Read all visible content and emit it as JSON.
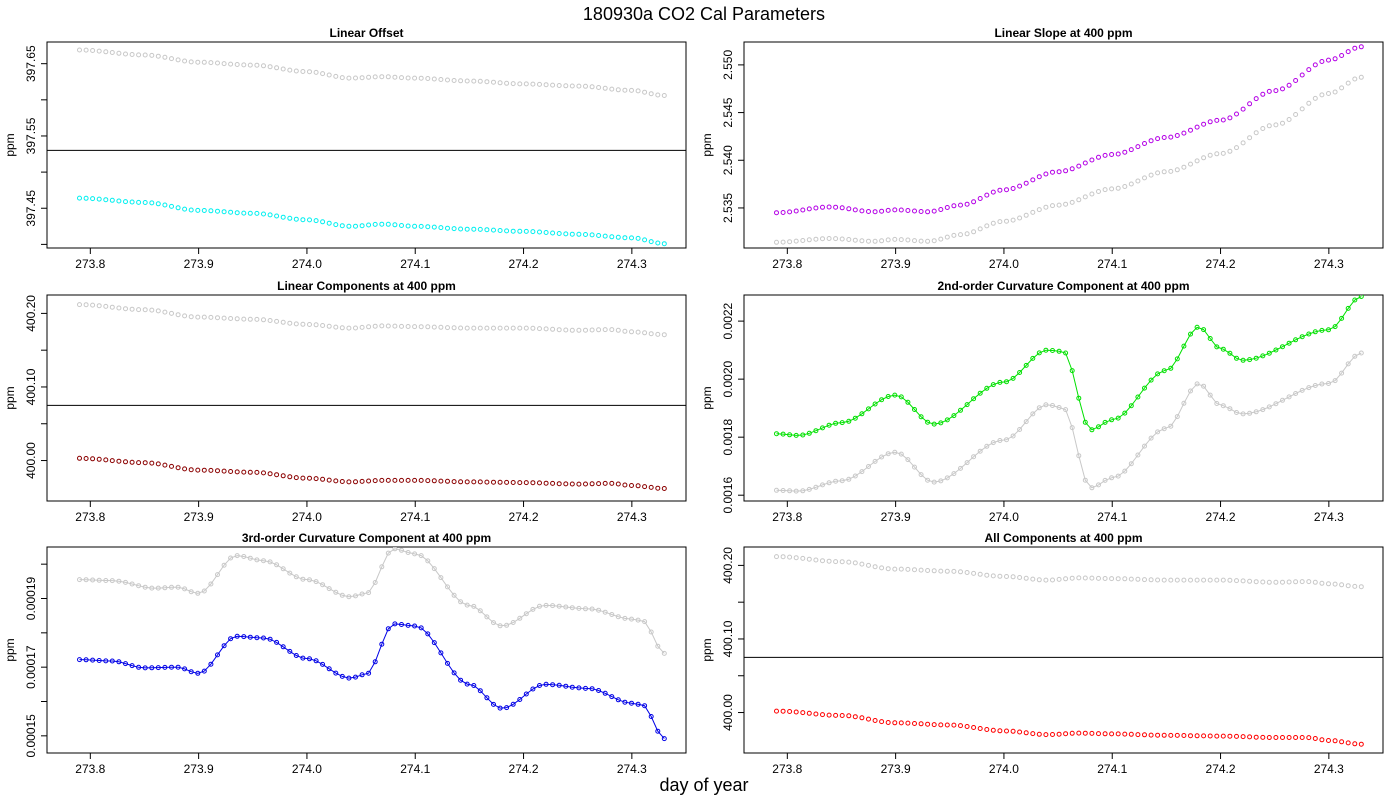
{
  "figure": {
    "title": "180930a   CO2 Cal Parameters",
    "xlabel": "day of year"
  },
  "chart_data": [
    {
      "id": "linear-offset",
      "type": "scatter",
      "title": "Linear Offset",
      "ylabel": "ppm",
      "xlim": [
        273.76,
        274.35
      ],
      "ylim": [
        397.395,
        397.68
      ],
      "x_ticks": [
        "273.8",
        "273.9",
        "274.0",
        "274.1",
        "274.2",
        "274.3"
      ],
      "y_ticks": [
        "397.45",
        "397.55",
        "397.65"
      ],
      "y_minor_ticks": [
        397.4,
        397.5,
        397.6
      ],
      "hline": 397.53,
      "x_range": [
        273.79,
        274.33
      ],
      "n_points": 90,
      "series": [
        {
          "color": "#c8c8c8",
          "profile": [
            [
              273.79,
              397.669
            ],
            [
              273.85,
              397.662
            ],
            [
              273.9,
              397.652
            ],
            [
              273.95,
              397.648
            ],
            [
              274.0,
              397.639
            ],
            [
              274.04,
              397.63
            ],
            [
              274.07,
              397.632
            ],
            [
              274.1,
              397.63
            ],
            [
              274.15,
              397.626
            ],
            [
              274.2,
              397.622
            ],
            [
              274.25,
              397.619
            ],
            [
              274.3,
              397.613
            ],
            [
              274.33,
              397.606
            ]
          ]
        },
        {
          "color": "#00f0f0",
          "profile": [
            [
              273.79,
              397.464
            ],
            [
              273.85,
              397.458
            ],
            [
              273.9,
              397.447
            ],
            [
              273.95,
              397.443
            ],
            [
              274.0,
              397.434
            ],
            [
              274.04,
              397.425
            ],
            [
              274.07,
              397.428
            ],
            [
              274.1,
              397.425
            ],
            [
              274.15,
              397.421
            ],
            [
              274.2,
              397.418
            ],
            [
              274.25,
              397.414
            ],
            [
              274.3,
              397.409
            ],
            [
              274.33,
              397.401
            ]
          ]
        }
      ]
    },
    {
      "id": "linear-slope",
      "type": "scatter",
      "title": "Linear Slope at 400 ppm",
      "ylabel": "ppm",
      "xlim": [
        273.76,
        274.35
      ],
      "ylim": [
        2.5308,
        2.5524
      ],
      "x_ticks": [
        "273.8",
        "273.9",
        "274.0",
        "274.1",
        "274.2",
        "274.3"
      ],
      "y_ticks": [
        "2.535",
        "2.540",
        "2.545",
        "2.550"
      ],
      "hline": null,
      "x_range": [
        273.79,
        274.33
      ],
      "n_points": 90,
      "series": [
        {
          "color": "#c8c8c8",
          "profile": [
            [
              273.79,
              2.5314
            ],
            [
              273.84,
              2.5318
            ],
            [
              273.88,
              2.5315
            ],
            [
              273.9,
              2.5317
            ],
            [
              273.93,
              2.5315
            ],
            [
              273.96,
              2.5322
            ],
            [
              274.0,
              2.5336
            ],
            [
              274.05,
              2.5353
            ],
            [
              274.1,
              2.537
            ],
            [
              274.15,
              2.5388
            ],
            [
              274.2,
              2.5407
            ],
            [
              274.25,
              2.5437
            ],
            [
              274.3,
              2.547
            ],
            [
              274.33,
              2.5487
            ]
          ]
        },
        {
          "color": "#b400e6",
          "profile": [
            [
              273.79,
              2.5345
            ],
            [
              273.84,
              2.5351
            ],
            [
              273.88,
              2.5346
            ],
            [
              273.9,
              2.5348
            ],
            [
              273.93,
              2.5346
            ],
            [
              273.96,
              2.5353
            ],
            [
              274.0,
              2.5369
            ],
            [
              274.05,
              2.5388
            ],
            [
              274.1,
              2.5406
            ],
            [
              274.15,
              2.5424
            ],
            [
              274.2,
              2.5442
            ],
            [
              274.25,
              2.5473
            ],
            [
              274.3,
              2.5505
            ],
            [
              274.33,
              2.5519
            ]
          ]
        }
      ]
    },
    {
      "id": "linear-components",
      "type": "scatter",
      "title": "Linear Components at 400 ppm",
      "ylabel": "ppm",
      "xlim": [
        273.76,
        274.35
      ],
      "ylim": [
        399.945,
        400.225
      ],
      "x_ticks": [
        "273.8",
        "273.9",
        "274.0",
        "274.1",
        "274.2",
        "274.3"
      ],
      "y_ticks": [
        "400.00",
        "400.10",
        "400.20"
      ],
      "y_minor_ticks": [
        400.05,
        400.15
      ],
      "hline": 400.075,
      "x_range": [
        273.79,
        274.33
      ],
      "n_points": 90,
      "series": [
        {
          "color": "#c8c8c8",
          "profile": [
            [
              273.79,
              400.212
            ],
            [
              273.85,
              400.205
            ],
            [
              273.9,
              400.195
            ],
            [
              273.95,
              400.192
            ],
            [
              274.0,
              400.185
            ],
            [
              274.04,
              400.18
            ],
            [
              274.07,
              400.183
            ],
            [
              274.1,
              400.182
            ],
            [
              274.15,
              400.18
            ],
            [
              274.2,
              400.18
            ],
            [
              274.25,
              400.177
            ],
            [
              274.28,
              400.178
            ],
            [
              274.3,
              400.175
            ],
            [
              274.33,
              400.171
            ]
          ]
        },
        {
          "color": "#8b0000",
          "profile": [
            [
              273.79,
              400.003
            ],
            [
              273.85,
              399.997
            ],
            [
              273.9,
              399.987
            ],
            [
              273.95,
              399.984
            ],
            [
              274.0,
              399.976
            ],
            [
              274.04,
              399.971
            ],
            [
              274.07,
              399.973
            ],
            [
              274.1,
              399.973
            ],
            [
              274.15,
              399.971
            ],
            [
              274.2,
              399.97
            ],
            [
              274.25,
              399.968
            ],
            [
              274.28,
              399.969
            ],
            [
              274.3,
              399.966
            ],
            [
              274.33,
              399.962
            ]
          ]
        }
      ]
    },
    {
      "id": "curvature-2nd",
      "type": "line",
      "title": "2nd-order Curvature Component at 400 ppm",
      "ylabel": "ppm",
      "xlim": [
        273.76,
        274.35
      ],
      "ylim": [
        0.00158,
        0.00229
      ],
      "x_ticks": [
        "273.8",
        "273.9",
        "274.0",
        "274.1",
        "274.2",
        "274.3"
      ],
      "y_ticks": [
        "0.0016",
        "0.0018",
        "0.0020",
        "0.0022"
      ],
      "hline": null,
      "x_range": [
        273.79,
        274.33
      ],
      "n_points": 90,
      "series": [
        {
          "color": "#c8c8c8",
          "profile": [
            [
              273.79,
              0.001617
            ],
            [
              273.81,
              0.001614
            ],
            [
              273.85,
              0.00165
            ],
            [
              273.9,
              0.001748
            ],
            [
              273.935,
              0.001645
            ],
            [
              274.0,
              0.00179
            ],
            [
              274.04,
              0.001912
            ],
            [
              274.055,
              0.0019
            ],
            [
              274.08,
              0.001625
            ],
            [
              274.1,
              0.00166
            ],
            [
              274.15,
              0.00183
            ],
            [
              274.18,
              0.001985
            ],
            [
              274.2,
              0.00191
            ],
            [
              274.22,
              0.00188
            ],
            [
              274.3,
              0.001985
            ],
            [
              274.33,
              0.00209
            ]
          ]
        },
        {
          "color": "#00e000",
          "profile": [
            [
              273.79,
              0.001812
            ],
            [
              273.81,
              0.001806
            ],
            [
              273.85,
              0.00185
            ],
            [
              273.9,
              0.001945
            ],
            [
              273.935,
              0.001845
            ],
            [
              274.0,
              0.00199
            ],
            [
              274.04,
              0.0021
            ],
            [
              274.055,
              0.002095
            ],
            [
              274.08,
              0.001825
            ],
            [
              274.1,
              0.00186
            ],
            [
              274.15,
              0.00203
            ],
            [
              274.18,
              0.00218
            ],
            [
              274.2,
              0.002105
            ],
            [
              274.22,
              0.002065
            ],
            [
              274.3,
              0.00217
            ],
            [
              274.33,
              0.002285
            ]
          ]
        }
      ]
    },
    {
      "id": "curvature-3rd",
      "type": "line",
      "title": "3rd-order Curvature Component at 400 ppm",
      "ylabel": "ppm",
      "xlim": [
        273.76,
        274.35
      ],
      "ylim": [
        0.000145,
        0.000205
      ],
      "x_ticks": [
        "273.8",
        "273.9",
        "274.0",
        "274.1",
        "274.2",
        "274.3"
      ],
      "y_ticks": [
        "0.00015",
        "0.00017",
        "0.00019"
      ],
      "y_minor_ticks": [
        0.00016,
        0.00018,
        0.0002
      ],
      "hline": null,
      "x_range": [
        273.79,
        274.33
      ],
      "n_points": 90,
      "series": [
        {
          "color": "#c8c8c8",
          "profile": [
            [
              273.79,
              0.0001955
            ],
            [
              273.82,
              0.0001952
            ],
            [
              273.86,
              0.000193
            ],
            [
              273.88,
              0.0001933
            ],
            [
              273.9,
              0.0001915
            ],
            [
              273.935,
              0.0002025
            ],
            [
              273.96,
              0.000201
            ],
            [
              274.0,
              0.0001955
            ],
            [
              274.04,
              0.0001905
            ],
            [
              274.055,
              0.0001915
            ],
            [
              274.08,
              0.0002045
            ],
            [
              274.1,
              0.000203
            ],
            [
              274.15,
              0.000188
            ],
            [
              274.18,
              0.000182
            ],
            [
              274.22,
              0.000188
            ],
            [
              274.26,
              0.000187
            ],
            [
              274.3,
              0.000184
            ],
            [
              274.31,
              0.0001835
            ],
            [
              274.33,
              0.000174
            ]
          ]
        },
        {
          "color": "#0000e6",
          "profile": [
            [
              273.79,
              0.0001722
            ],
            [
              273.82,
              0.0001718
            ],
            [
              273.85,
              0.0001698
            ],
            [
              273.88,
              0.00017
            ],
            [
              273.9,
              0.0001682
            ],
            [
              273.935,
              0.000179
            ],
            [
              273.96,
              0.0001785
            ],
            [
              274.0,
              0.0001725
            ],
            [
              274.04,
              0.0001668
            ],
            [
              274.055,
              0.000168
            ],
            [
              274.08,
              0.0001826
            ],
            [
              274.1,
              0.000182
            ],
            [
              274.15,
              0.000165
            ],
            [
              274.18,
              0.000158
            ],
            [
              274.22,
              0.000165
            ],
            [
              274.26,
              0.0001638
            ],
            [
              274.3,
              0.0001595
            ],
            [
              274.31,
              0.000159
            ],
            [
              274.33,
              0.0001492
            ]
          ]
        }
      ]
    },
    {
      "id": "all-components",
      "type": "scatter",
      "title": "All Components at 400 ppm",
      "ylabel": "ppm",
      "xlim": [
        273.76,
        274.35
      ],
      "ylim": [
        399.945,
        400.225
      ],
      "x_ticks": [
        "273.8",
        "273.9",
        "274.0",
        "274.1",
        "274.2",
        "274.3"
      ],
      "y_ticks": [
        "400.00",
        "400.10",
        "400.20"
      ],
      "y_minor_ticks": [
        400.05,
        400.15
      ],
      "hline": 400.075,
      "x_range": [
        273.79,
        274.33
      ],
      "n_points": 90,
      "series": [
        {
          "color": "#c8c8c8",
          "profile": [
            [
              273.79,
              400.212
            ],
            [
              273.85,
              400.205
            ],
            [
              273.9,
              400.195
            ],
            [
              273.95,
              400.192
            ],
            [
              274.0,
              400.185
            ],
            [
              274.04,
              400.18
            ],
            [
              274.07,
              400.183
            ],
            [
              274.1,
              400.182
            ],
            [
              274.15,
              400.18
            ],
            [
              274.2,
              400.18
            ],
            [
              274.25,
              400.177
            ],
            [
              274.28,
              400.178
            ],
            [
              274.3,
              400.175
            ],
            [
              274.33,
              400.171
            ]
          ]
        },
        {
          "color": "#ff0000",
          "profile": [
            [
              273.79,
              400.002
            ],
            [
              273.85,
              399.996
            ],
            [
              273.9,
              399.986
            ],
            [
              273.95,
              399.983
            ],
            [
              274.0,
              399.975
            ],
            [
              274.04,
              399.97
            ],
            [
              274.07,
              399.972
            ],
            [
              274.1,
              399.971
            ],
            [
              274.15,
              399.969
            ],
            [
              274.2,
              399.968
            ],
            [
              274.25,
              399.966
            ],
            [
              274.28,
              399.966
            ],
            [
              274.3,
              399.962
            ],
            [
              274.33,
              399.957
            ]
          ]
        }
      ]
    }
  ]
}
